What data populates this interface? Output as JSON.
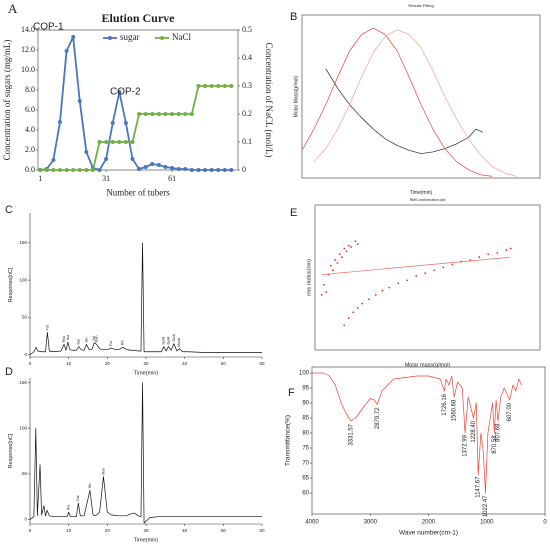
{
  "chart_data": [
    {
      "type": "line",
      "panel": "A",
      "title": "Elution Curve",
      "xlabel": "Number of tubers",
      "ylabel": "Concentration of sugars (mg/mL)",
      "y2label": "Concentration of  NaCL (mol/L)",
      "annotations": [
        "COP-1",
        "COP-2"
      ],
      "legend": "top",
      "x": [
        1,
        4,
        7,
        10,
        13,
        16,
        19,
        22,
        25,
        28,
        31,
        34,
        37,
        40,
        43,
        46,
        49,
        52,
        55,
        58,
        61,
        64,
        67,
        70,
        73,
        76,
        79,
        82,
        85,
        88
      ],
      "series": [
        {
          "name": "sugar",
          "color": "#4a76c0",
          "marker": true,
          "values": [
            0.0,
            0.1,
            1.0,
            4.8,
            11.9,
            13.3,
            6.9,
            1.8,
            0.2,
            0.0,
            1.1,
            4.7,
            7.8,
            4.7,
            1.1,
            0.1,
            0.3,
            0.6,
            0.5,
            0.3,
            0.2,
            0.1,
            0.1,
            0.0,
            0.0,
            0.0,
            0.0,
            0.0,
            0.0,
            0.0
          ]
        },
        {
          "name": "NaCl",
          "color": "#72b043",
          "marker": true,
          "axis": "y2",
          "values": [
            0,
            0,
            0,
            0,
            0,
            0,
            0,
            0,
            0,
            0.1,
            0.1,
            0.1,
            0.1,
            0.1,
            0.1,
            0.2,
            0.2,
            0.2,
            0.2,
            0.2,
            0.2,
            0.2,
            0.2,
            0.2,
            0.3,
            0.3,
            0.3,
            0.3,
            0.3,
            0.3
          ]
        }
      ],
      "xlim": [
        0,
        91
      ],
      "xticks": [
        1,
        31,
        61
      ],
      "ylim": [
        0,
        14
      ],
      "yticks": [
        {
          "value": 0,
          "label": "0.0"
        },
        {
          "value": 2,
          "label": "2.0"
        },
        {
          "value": 4,
          "label": "4.0"
        },
        {
          "value": 6,
          "label": "6.0"
        },
        {
          "value": 8,
          "label": "8.0"
        },
        {
          "value": 10,
          "label": "10.0"
        },
        {
          "value": 12,
          "label": "12.0"
        },
        {
          "value": 14,
          "label": "14.0"
        }
      ],
      "y2lim": [
        0,
        0.5
      ],
      "y2ticks": [
        0,
        0.1,
        0.2,
        0.3,
        0.4,
        0.5
      ]
    },
    {
      "type": "line",
      "panel": "B",
      "title": "Results Fitting",
      "xlabel": "Time(min)",
      "ylabel": "Molar Mass(g/mol)",
      "xlim": [
        0,
        1
      ],
      "ylim": [
        0,
        1
      ],
      "series": [
        {
          "color": "#222222",
          "x": [
            0.1,
            0.15,
            0.2,
            0.25,
            0.3,
            0.35,
            0.4,
            0.45,
            0.5,
            0.55,
            0.6,
            0.65,
            0.7,
            0.73,
            0.76
          ],
          "values": [
            0.67,
            0.55,
            0.45,
            0.37,
            0.3,
            0.24,
            0.2,
            0.17,
            0.15,
            0.16,
            0.18,
            0.21,
            0.25,
            0.3,
            0.28
          ]
        },
        {
          "color": "#e8453c",
          "x": [
            0,
            0.05,
            0.1,
            0.15,
            0.2,
            0.25,
            0.3,
            0.35,
            0.4,
            0.45,
            0.5,
            0.55,
            0.6,
            0.65,
            0.7,
            0.75,
            0.8
          ],
          "values": [
            0.17,
            0.3,
            0.45,
            0.62,
            0.78,
            0.88,
            0.92,
            0.88,
            0.78,
            0.62,
            0.45,
            0.3,
            0.18,
            0.1,
            0.05,
            0.02,
            0.01
          ]
        },
        {
          "color": "#f3a09a",
          "x": [
            0.05,
            0.1,
            0.15,
            0.2,
            0.25,
            0.3,
            0.35,
            0.4,
            0.45,
            0.5,
            0.55,
            0.6,
            0.65,
            0.7,
            0.75,
            0.8,
            0.85,
            0.9
          ],
          "values": [
            0.1,
            0.18,
            0.3,
            0.45,
            0.62,
            0.77,
            0.87,
            0.91,
            0.88,
            0.8,
            0.66,
            0.5,
            0.36,
            0.24,
            0.14,
            0.07,
            0.03,
            0.01
          ]
        }
      ]
    },
    {
      "type": "line",
      "panel": "C",
      "xlabel": "Time(min)",
      "ylabel": "Response[nC]",
      "xlim": [
        0,
        60
      ],
      "xticks": [
        0,
        10,
        20,
        30,
        40,
        50,
        60
      ],
      "ylim": [
        -3,
        190
      ],
      "yticks": [
        0,
        50,
        100,
        150
      ],
      "x": [
        0,
        1,
        1.6,
        2,
        3,
        4,
        4.5,
        5,
        6,
        8,
        8.8,
        9.3,
        9.8,
        10.3,
        11,
        12,
        12.6,
        13.2,
        14,
        14.6,
        15.3,
        16,
        16.6,
        17.2,
        18,
        19,
        20,
        21,
        22,
        23,
        24,
        25,
        26,
        27,
        28,
        28.7,
        29.1,
        29.5,
        30,
        31,
        33,
        34,
        34.6,
        35.2,
        35.8,
        36.5,
        37.2,
        38,
        38.6,
        39.5,
        41,
        45,
        50,
        55,
        60
      ],
      "series": [
        {
          "color": "#111111",
          "values": [
            0,
            4,
            10,
            5,
            4,
            4,
            30,
            5,
            4,
            5,
            14,
            6,
            17,
            7,
            6,
            6,
            11,
            7,
            6,
            14,
            7,
            7,
            16,
            14,
            8,
            7,
            7,
            9,
            7,
            7,
            10,
            7,
            6,
            6,
            5,
            5,
            150,
            4,
            4,
            4,
            4,
            4,
            11,
            5,
            11,
            6,
            15,
            5,
            8,
            4,
            4,
            3,
            3,
            3,
            3
          ]
        }
      ],
      "peak_labels": [
        {
          "x": 4.5,
          "text": "Fuc"
        },
        {
          "x": 8.8,
          "text": "Rha"
        },
        {
          "x": 9.8,
          "text": "Ara"
        },
        {
          "x": 12.6,
          "text": "Gal"
        },
        {
          "x": 14.6,
          "text": "Glc"
        },
        {
          "x": 16.6,
          "text": "Xyl"
        },
        {
          "x": 17.2,
          "text": "Man"
        },
        {
          "x": 21,
          "text": "Fru"
        },
        {
          "x": 24,
          "text": "Rib"
        },
        {
          "x": 34.6,
          "text": "GalA"
        },
        {
          "x": 35.8,
          "text": "GulA"
        },
        {
          "x": 37.2,
          "text": "GlcA"
        },
        {
          "x": 38.6,
          "text": "ManA"
        }
      ]
    },
    {
      "type": "line",
      "panel": "D",
      "xlabel": "Time(min)",
      "ylabel": "Response[nC]",
      "xlim": [
        0,
        60
      ],
      "xticks": [
        0,
        10,
        20,
        30,
        40,
        50,
        60
      ],
      "ylim": [
        -5,
        155
      ],
      "yticks": [
        0,
        50,
        100,
        150
      ],
      "x": [
        0,
        1,
        1.5,
        1.9,
        2.6,
        3,
        3.6,
        4,
        4.4,
        5,
        6,
        8,
        9.6,
        10,
        10.5,
        12,
        12.5,
        13,
        14,
        15.5,
        16.3,
        17,
        18,
        19,
        20,
        21,
        23,
        25,
        26,
        27,
        28,
        28.7,
        29.1,
        29.5,
        30,
        31,
        33,
        40,
        50,
        60
      ],
      "series": [
        {
          "color": "#111111",
          "values": [
            0,
            3,
            100,
            4,
            60,
            5,
            15,
            4,
            10,
            4,
            3,
            3,
            3,
            8,
            3,
            3,
            18,
            4,
            4,
            32,
            5,
            4,
            8,
            47,
            8,
            5,
            4,
            4,
            6,
            7,
            4,
            3,
            150,
            -4,
            -2,
            2,
            3,
            3,
            3,
            3
          ]
        }
      ],
      "peak_labels": [
        {
          "x": 10,
          "text": "Ara"
        },
        {
          "x": 12.5,
          "text": "Gal"
        },
        {
          "x": 15.5,
          "text": "Glc"
        },
        {
          "x": 19,
          "text": "Man"
        }
      ]
    },
    {
      "type": "scatter",
      "panel": "E",
      "title": "RMS conformation plot",
      "xlabel": "Molar mass(g/mol)",
      "ylabel": "rms radius(nm)",
      "xlim": [
        0,
        1
      ],
      "ylim": [
        0,
        1
      ],
      "series": [
        {
          "color": "#e03020",
          "x": [
            0.03,
            0.04,
            0.05,
            0.06,
            0.07,
            0.08,
            0.09,
            0.1,
            0.11,
            0.12,
            0.13,
            0.14,
            0.15,
            0.16,
            0.18,
            0.19
          ],
          "values": [
            0.38,
            0.45,
            0.4,
            0.52,
            0.58,
            0.55,
            0.62,
            0.6,
            0.66,
            0.64,
            0.7,
            0.68,
            0.72,
            0.71,
            0.75,
            0.73
          ]
        },
        {
          "color": "#e03020",
          "x": [
            0.13,
            0.15,
            0.17,
            0.19,
            0.21,
            0.24,
            0.27,
            0.3,
            0.33,
            0.37,
            0.41,
            0.45,
            0.49,
            0.53,
            0.57,
            0.61,
            0.65,
            0.69,
            0.73,
            0.77,
            0.81,
            0.85,
            0.87
          ],
          "values": [
            0.17,
            0.22,
            0.26,
            0.29,
            0.32,
            0.35,
            0.38,
            0.41,
            0.43,
            0.46,
            0.48,
            0.51,
            0.53,
            0.55,
            0.57,
            0.59,
            0.61,
            0.62,
            0.64,
            0.66,
            0.67,
            0.69,
            0.7
          ]
        },
        {
          "color": "#e87060",
          "style": "line",
          "x": [
            0.03,
            0.87
          ],
          "values": [
            0.52,
            0.64
          ]
        }
      ]
    },
    {
      "type": "line",
      "panel": "F",
      "xlabel": "Wave number(cm-1)",
      "ylabel": "Transmittance(%)",
      "xlim": [
        4000,
        0
      ],
      "xticks": [
        4000,
        3000,
        2000,
        1000,
        0
      ],
      "ylim": [
        53,
        102
      ],
      "yticks": [
        60,
        65,
        70,
        75,
        80,
        85,
        90,
        95,
        100
      ],
      "x": [
        4000,
        3800,
        3700,
        3600,
        3500,
        3400,
        3331,
        3250,
        3100,
        3000,
        2930,
        2879,
        2800,
        2600,
        2400,
        2200,
        2000,
        1800,
        1726,
        1700,
        1650,
        1600,
        1560,
        1500,
        1420,
        1372,
        1320,
        1228,
        1180,
        1147,
        1100,
        1060,
        1022,
        980,
        900,
        870,
        840,
        807,
        760,
        700,
        607,
        550,
        500,
        450,
        400
      ],
      "series": [
        {
          "color": "#e8453c",
          "values": [
            100,
            100,
            99,
            96,
            90,
            86,
            84,
            85,
            89,
            91.5,
            91,
            89.5,
            94,
            98,
            98.5,
            99,
            99,
            98,
            94,
            98,
            96,
            99,
            92,
            97,
            95,
            80,
            92,
            85,
            90,
            66,
            80,
            74,
            60,
            80,
            90,
            80,
            91,
            84,
            92,
            95,
            91,
            96,
            94,
            98,
            96
          ]
        }
      ],
      "peaks": [
        {
          "value": 3331.57,
          "label": "3331.57"
        },
        {
          "value": 2879.72,
          "label": "2879.72"
        },
        {
          "value": 1726.16,
          "label": "1726.16"
        },
        {
          "value": 1560.68,
          "label": "1560.68"
        },
        {
          "value": 1372.99,
          "label": "1372.99"
        },
        {
          "value": 1228.4,
          "label": "1228.40"
        },
        {
          "value": 1147.67,
          "label": "1147.67"
        },
        {
          "value": 1022.47,
          "label": "1022.47"
        },
        {
          "value": 870.58,
          "label": "870.58"
        },
        {
          "value": 807.68,
          "label": "807.68"
        },
        {
          "value": 607,
          "label": "607.00"
        }
      ]
    }
  ]
}
